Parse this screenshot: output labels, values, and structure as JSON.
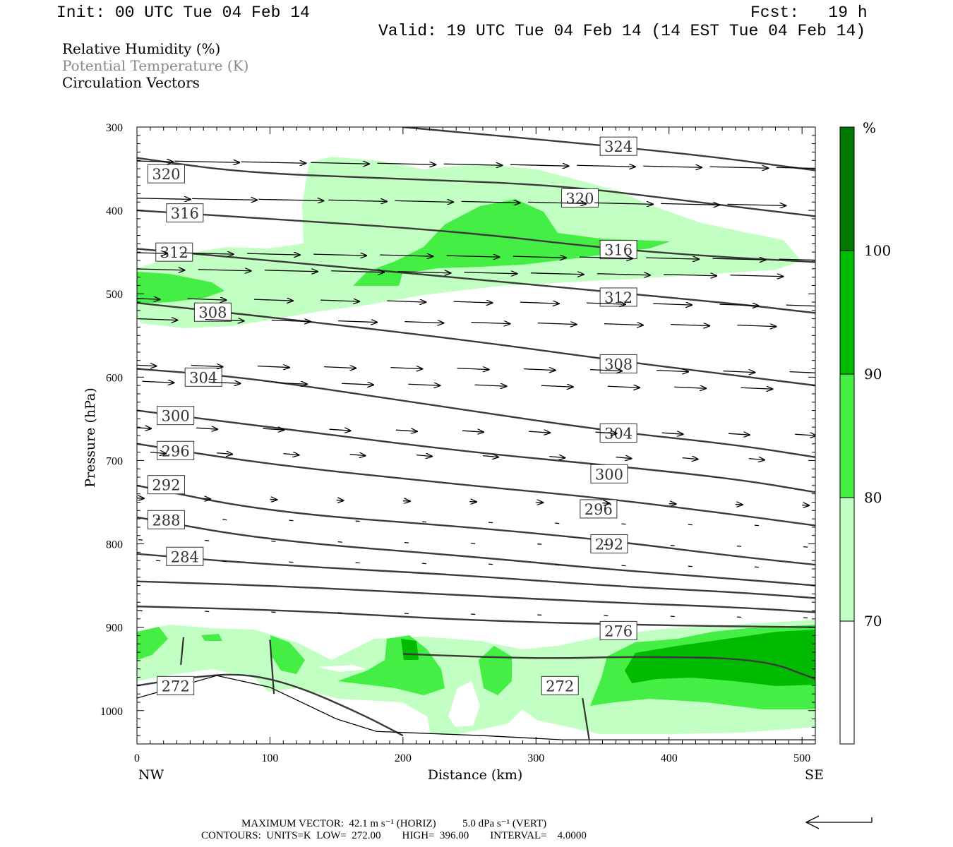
{
  "header": {
    "init": "Init: 00 UTC Tue 04 Feb 14",
    "fcst": "Fcst:   19 h",
    "valid": "Valid: 19 UTC Tue 04 Feb 14 (14 EST Tue 04 Feb 14)"
  },
  "legend": {
    "line1": "Relative Humidity (%)",
    "line2": "Potential Temperature (K)",
    "line3": "Circulation Vectors"
  },
  "footer": {
    "line1": "MAXIMUM VECTOR:  42.1 m s⁻¹ (HORIZ)          5.0 dPa s⁻¹ (VERT)",
    "line2": "CONTOURS:  UNITS=K  LOW=  272.00        HIGH=  396.00        INTERVAL=    4.0000"
  },
  "colors": {
    "rh_70": "#c2ffc2",
    "rh_80": "#44ee44",
    "rh_90": "#00bb00",
    "rh_100": "#007700",
    "contour": "#3a3a3a"
  },
  "chart_data": {
    "type": "cross-section",
    "xlabel": "Distance (km)",
    "ylabel": "Pressure (hPa)",
    "xlim": [
      0,
      510
    ],
    "ylim": [
      1040,
      300
    ],
    "x_ticks": [
      "0",
      "100",
      "200",
      "300",
      "400",
      "500"
    ],
    "y_ticks": [
      "300",
      "400",
      "500",
      "600",
      "700",
      "800",
      "900",
      "1000"
    ],
    "x_end_labels": {
      "left": "NW",
      "right": "SE"
    },
    "colorbar": {
      "unit": "%",
      "levels": [
        "70",
        "80",
        "90",
        "100"
      ]
    },
    "theta_contours": [
      {
        "value": 324,
        "label": "324",
        "points": [
          [
            200,
            300
          ],
          [
            350,
            322
          ],
          [
            430,
            335
          ],
          [
            510,
            352
          ]
        ]
      },
      {
        "value": 320,
        "label": "320",
        "points": [
          [
            0,
            337
          ],
          [
            80,
            355
          ],
          [
            200,
            362
          ],
          [
            320,
            370
          ],
          [
            420,
            390
          ],
          [
            510,
            407
          ]
        ]
      },
      {
        "value": 316,
        "label": "316",
        "points": [
          [
            0,
            400
          ],
          [
            100,
            410
          ],
          [
            240,
            425
          ],
          [
            350,
            445
          ],
          [
            430,
            455
          ],
          [
            510,
            462
          ]
        ]
      },
      {
        "value": 312,
        "label": "312",
        "points": [
          [
            0,
            446
          ],
          [
            100,
            460
          ],
          [
            250,
            482
          ],
          [
            350,
            497
          ],
          [
            450,
            512
          ],
          [
            510,
            523
          ]
        ]
      },
      {
        "value": 308,
        "label": "308",
        "points": [
          [
            0,
            511
          ],
          [
            100,
            528
          ],
          [
            250,
            556
          ],
          [
            350,
            578
          ],
          [
            450,
            598
          ],
          [
            510,
            610
          ]
        ]
      },
      {
        "value": 304,
        "label": "304",
        "points": [
          [
            0,
            590
          ],
          [
            80,
            600
          ],
          [
            200,
            628
          ],
          [
            350,
            664
          ],
          [
            450,
            681
          ],
          [
            510,
            696
          ]
        ]
      },
      {
        "value": 300,
        "label": "300",
        "points": [
          [
            0,
            640
          ],
          [
            100,
            660
          ],
          [
            250,
            690
          ],
          [
            350,
            705
          ],
          [
            450,
            722
          ],
          [
            510,
            738
          ]
        ]
      },
      {
        "value": 296,
        "label": "296",
        "points": [
          [
            0,
            680
          ],
          [
            100,
            705
          ],
          [
            250,
            730
          ],
          [
            350,
            745
          ],
          [
            450,
            765
          ],
          [
            510,
            778
          ]
        ]
      },
      {
        "value": 292,
        "label": "292",
        "points": [
          [
            0,
            730
          ],
          [
            100,
            762
          ],
          [
            250,
            780
          ],
          [
            350,
            795
          ],
          [
            450,
            815
          ],
          [
            510,
            825
          ]
        ]
      },
      {
        "value": 288,
        "label": "288",
        "points": [
          [
            0,
            768
          ],
          [
            100,
            796
          ],
          [
            250,
            815
          ],
          [
            350,
            830
          ],
          [
            450,
            842
          ],
          [
            510,
            850
          ]
        ]
      },
      {
        "value": 284,
        "label": "284",
        "points": [
          [
            0,
            812
          ],
          [
            100,
            825
          ],
          [
            250,
            838
          ],
          [
            350,
            850
          ],
          [
            450,
            858
          ],
          [
            510,
            865
          ]
        ]
      },
      {
        "value": 280,
        "label": "",
        "points": [
          [
            0,
            845
          ],
          [
            100,
            850
          ],
          [
            250,
            862
          ],
          [
            350,
            870
          ],
          [
            450,
            876
          ],
          [
            510,
            882
          ]
        ]
      },
      {
        "value": 278,
        "label": "",
        "points": [
          [
            0,
            875
          ],
          [
            120,
            880
          ],
          [
            250,
            892
          ],
          [
            400,
            898
          ],
          [
            510,
            900
          ]
        ]
      },
      {
        "value": 276,
        "label": "276",
        "points": [
          [
            200,
            932
          ],
          [
            300,
            938
          ],
          [
            380,
            935
          ],
          [
            470,
            938
          ],
          [
            510,
            962
          ]
        ]
      },
      {
        "value": 272,
        "label": "272",
        "points": [
          [
            0,
            970
          ],
          [
            40,
            960
          ],
          [
            80,
            955
          ],
          [
            120,
            970
          ],
          [
            170,
            1005
          ],
          [
            200,
            1030
          ]
        ]
      }
    ],
    "theta_labels": [
      {
        "text": "324",
        "x": 362,
        "y": 323
      },
      {
        "text": "320",
        "x": 22,
        "y": 356
      },
      {
        "text": "320",
        "x": 333,
        "y": 385
      },
      {
        "text": "316",
        "x": 36,
        "y": 403
      },
      {
        "text": "316",
        "x": 362,
        "y": 447
      },
      {
        "text": "312",
        "x": 28,
        "y": 450
      },
      {
        "text": "312",
        "x": 362,
        "y": 504
      },
      {
        "text": "308",
        "x": 57,
        "y": 522
      },
      {
        "text": "308",
        "x": 362,
        "y": 584
      },
      {
        "text": "304",
        "x": 50,
        "y": 600
      },
      {
        "text": "304",
        "x": 362,
        "y": 667
      },
      {
        "text": "300",
        "x": 29,
        "y": 646
      },
      {
        "text": "300",
        "x": 355,
        "y": 716
      },
      {
        "text": "296",
        "x": 29,
        "y": 688
      },
      {
        "text": "296",
        "x": 347,
        "y": 758
      },
      {
        "text": "292",
        "x": 22,
        "y": 729
      },
      {
        "text": "292",
        "x": 355,
        "y": 800
      },
      {
        "text": "288",
        "x": 22,
        "y": 771
      },
      {
        "text": "284",
        "x": 36,
        "y": 815
      },
      {
        "text": "276",
        "x": 362,
        "y": 904
      },
      {
        "text": "272",
        "x": 29,
        "y": 970
      },
      {
        "text": "272",
        "x": 318,
        "y": 970
      }
    ]
  }
}
